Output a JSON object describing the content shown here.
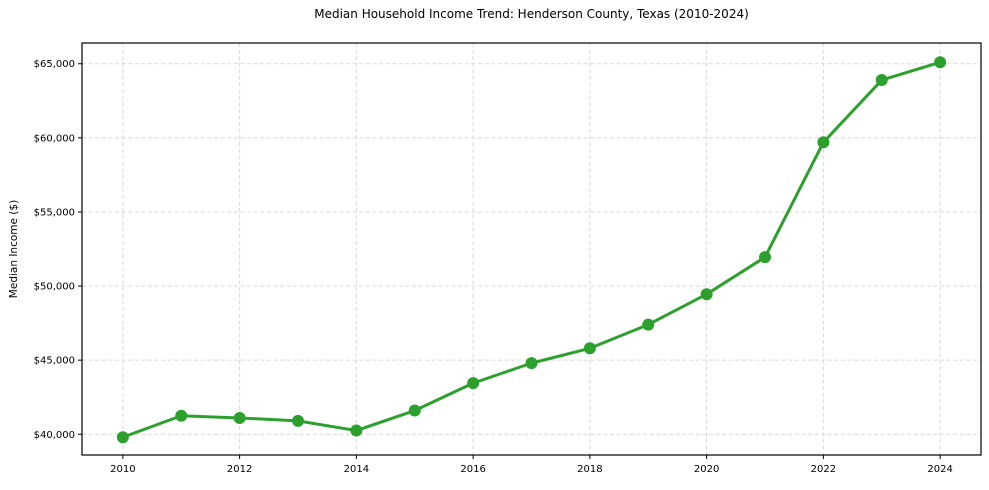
{
  "chart_data": {
    "type": "line",
    "title": "Median Household Income Trend: Henderson County, Texas (2010-2024)",
    "xlabel": "",
    "ylabel": "Median Income ($)",
    "x": [
      2010,
      2011,
      2012,
      2013,
      2014,
      2015,
      2016,
      2017,
      2018,
      2019,
      2020,
      2021,
      2022,
      2023,
      2024
    ],
    "values": [
      39800,
      41250,
      41100,
      40900,
      40250,
      41600,
      43450,
      44800,
      45800,
      47400,
      49450,
      51950,
      59700,
      63900,
      65100
    ],
    "series_name": "Median Household Income",
    "xlim": [
      2009.3,
      2024.7
    ],
    "ylim": [
      38600,
      66400
    ],
    "x_ticks": [
      2010,
      2012,
      2014,
      2016,
      2018,
      2020,
      2022,
      2024
    ],
    "x_tick_labels": [
      "2010",
      "2012",
      "2014",
      "2016",
      "2018",
      "2020",
      "2022",
      "2024"
    ],
    "y_ticks": [
      40000,
      45000,
      50000,
      55000,
      60000,
      65000
    ],
    "y_tick_labels": [
      "$40,000",
      "$45,000",
      "$50,000",
      "$55,000",
      "$60,000",
      "$65,000"
    ],
    "grid": true,
    "legend": "none",
    "line_color": "#2ca02c",
    "marker": "circle",
    "marker_color": "#2ca02c",
    "grid_color": "#d8d8d8",
    "frame_color": "#000000",
    "background_color": "#ffffff"
  }
}
